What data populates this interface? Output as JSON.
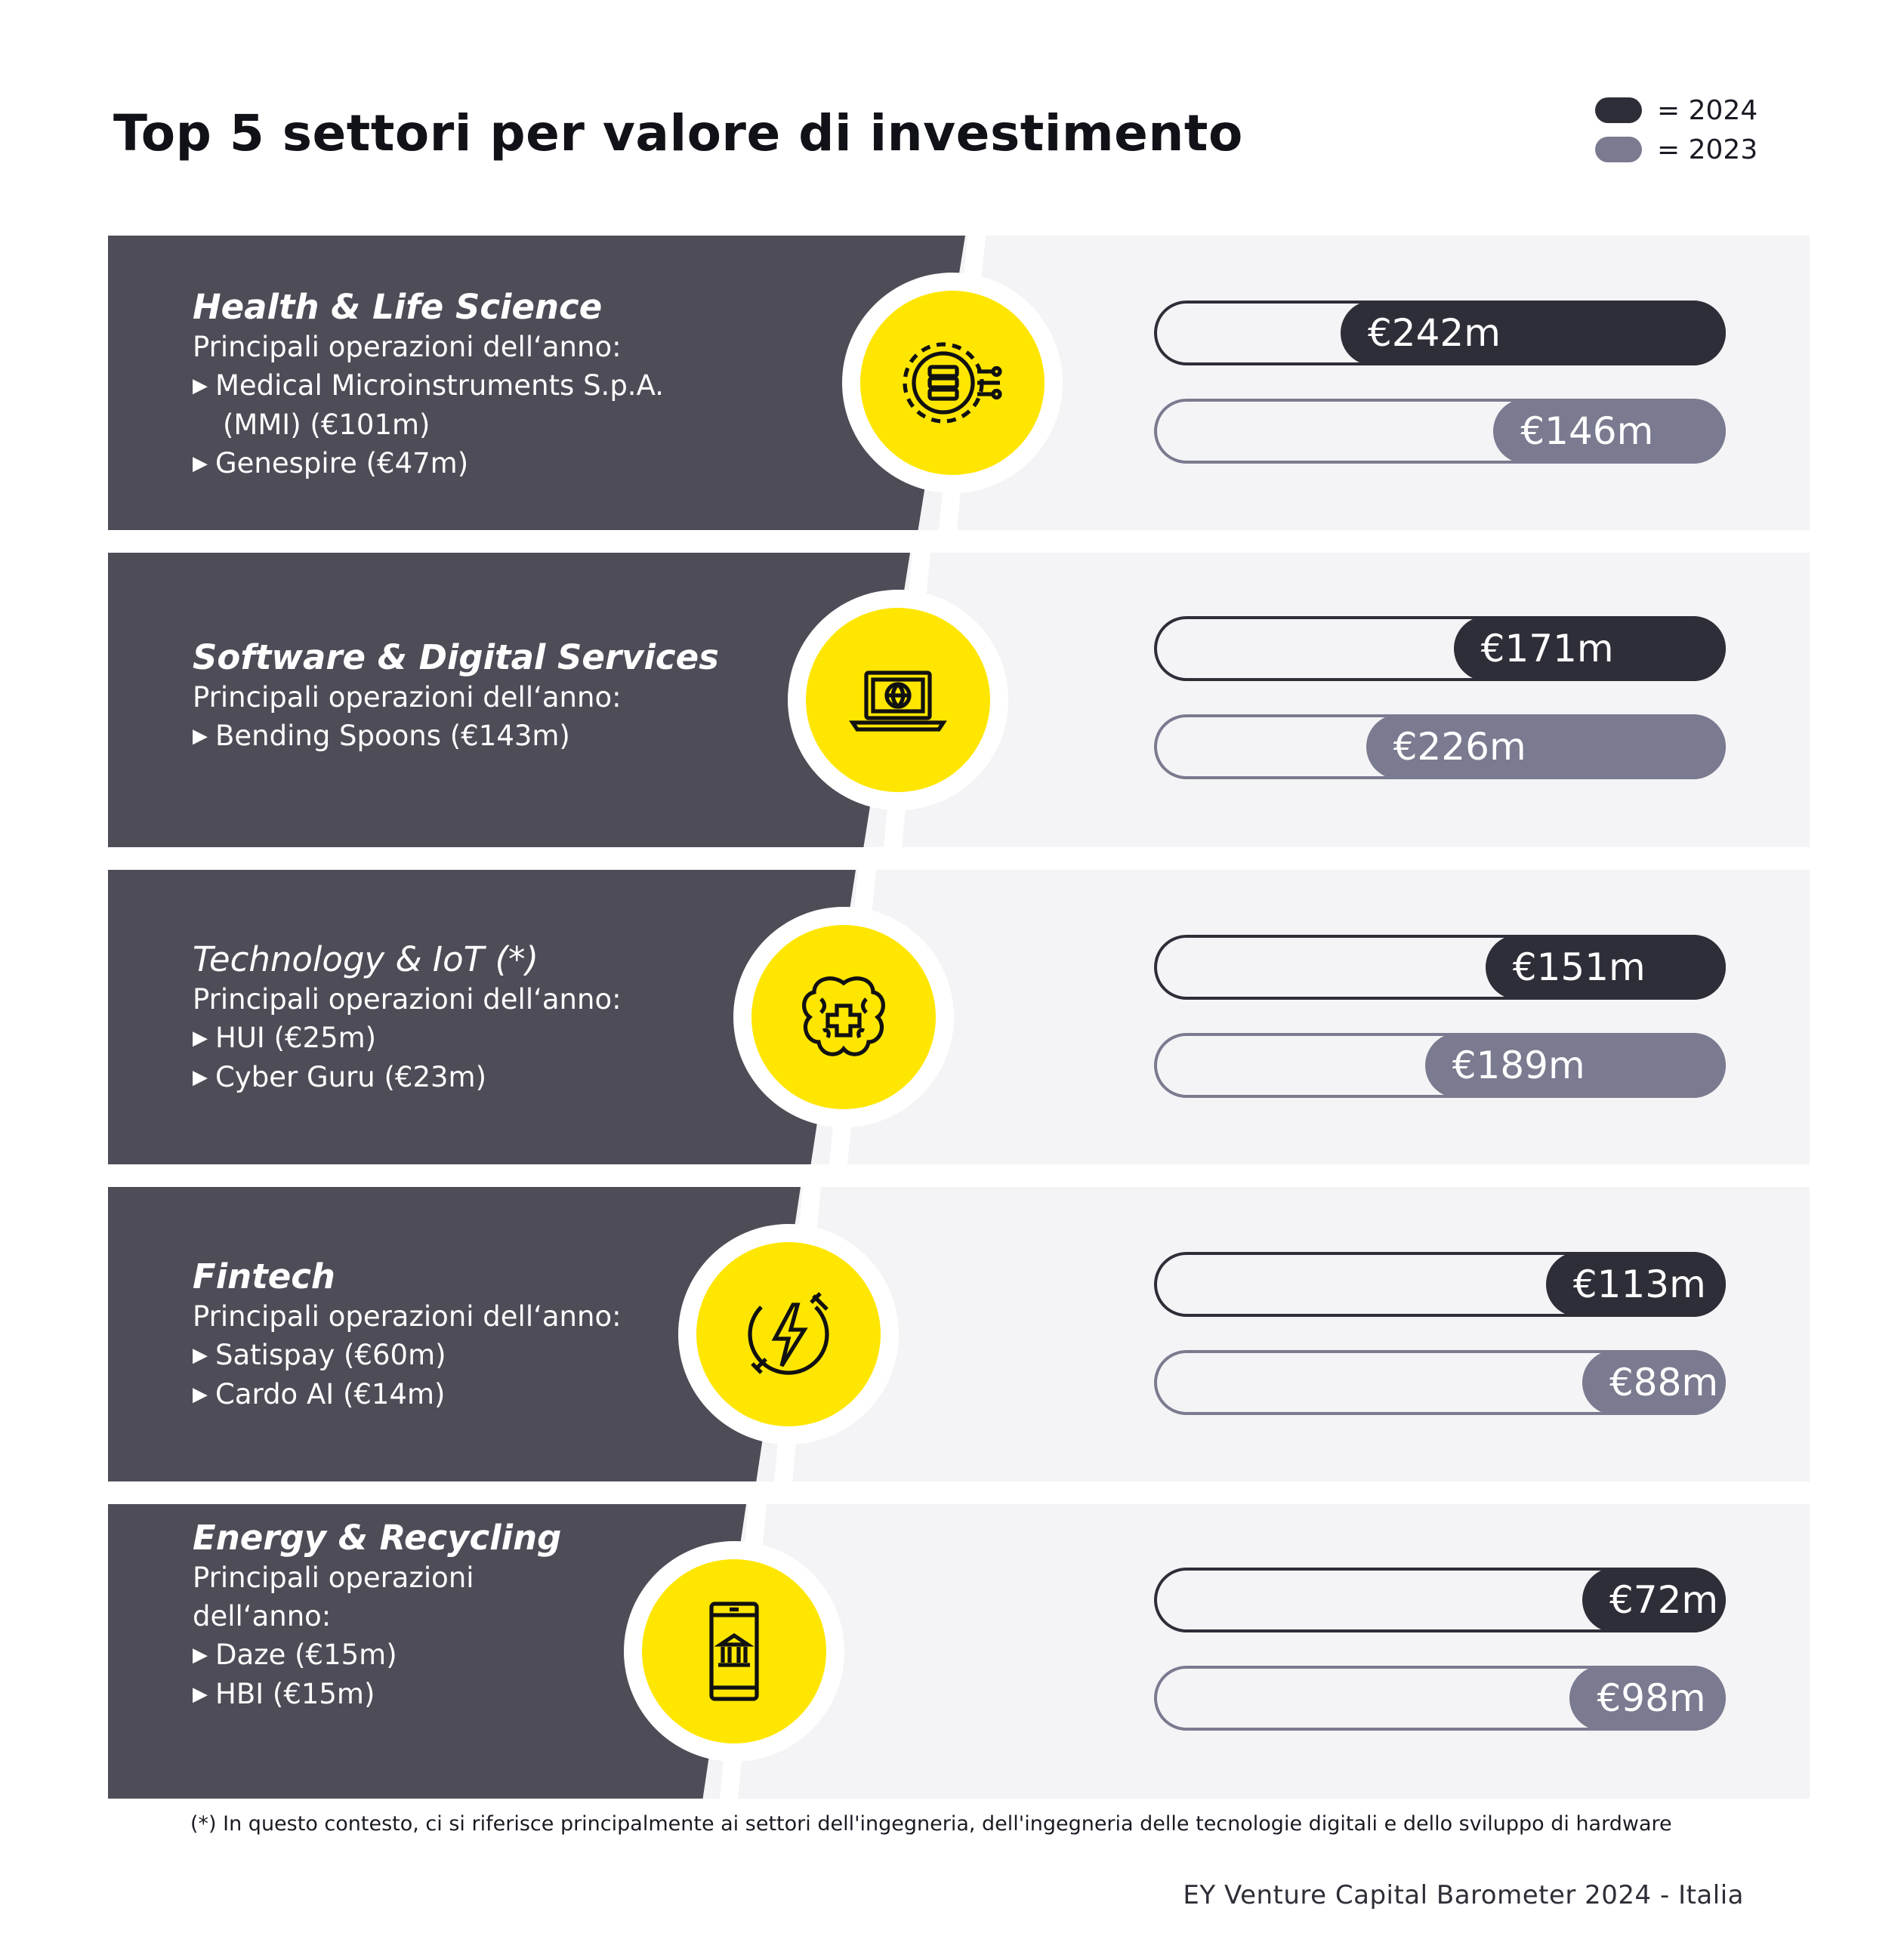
{
  "title": "Top 5 settori per valore di investimento",
  "legend": [
    {
      "label": "= 2024",
      "color": "#2e2e38"
    },
    {
      "label": "= 2023",
      "color": "#7a7a90"
    }
  ],
  "colors": {
    "panel_dark": "#4d4c57",
    "accent_yellow": "#ffe600",
    "background_light": "#f4f4f6"
  },
  "chart_data": {
    "type": "bar",
    "categories": [
      "Health & Life Science",
      "Software & Digital Services",
      "Technology & IoT (*)",
      "Fintech",
      "Energy & Recycling"
    ],
    "series": [
      {
        "name": "2024",
        "values": [
          242,
          171,
          151,
          113,
          72
        ],
        "labels": [
          "€242m",
          "€171m",
          "€151m",
          "€113m",
          "€72m"
        ]
      },
      {
        "name": "2023",
        "values": [
          146,
          226,
          189,
          88,
          98
        ],
        "labels": [
          "€146m",
          "€226m",
          "€189m",
          "€88m",
          "€98m"
        ]
      }
    ],
    "xlim": [
      0,
      242
    ]
  },
  "sectors": [
    {
      "name": "Health & Life Science",
      "subtitle": "Principali operazioni dell‘anno:",
      "deals": [
        "Medical Microinstruments S.p.A.",
        "Genespire (€47m)"
      ],
      "deal_cont": "(MMI) (€101m)",
      "icon": "gear-circuit-icon"
    },
    {
      "name": "Software & Digital Services",
      "subtitle": "Principali operazioni dell‘anno:",
      "deals": [
        "Bending Spoons (€143m)"
      ],
      "icon": "laptop-globe-icon"
    },
    {
      "name": "Technology & IoT (*)",
      "subtitle": "Principali operazioni dell‘anno:",
      "deals": [
        "HUI (€25m)",
        "Cyber Guru (€23m)"
      ],
      "icon": "brain-cross-icon"
    },
    {
      "name": "Fintech",
      "subtitle": "Principali operazioni dell‘anno:",
      "deals": [
        "Satispay (€60m)",
        "Cardo AI (€14m)"
      ],
      "icon": "lightning-plug-icon"
    },
    {
      "name": "Energy & Recycling",
      "subtitle_lines": [
        "Principali operazioni",
        "dell‘anno:"
      ],
      "deals": [
        "Daze (€15m)",
        "HBI (€15m)"
      ],
      "icon": "phone-bank-icon"
    }
  ],
  "footnote": "(*) In questo contesto, ci si riferisce principalmente ai settori dell'ingegneria, dell'ingegneria delle tecnologie digitali e dello sviluppo di hardware",
  "source": "EY Venture Capital Barometer 2024 - Italia"
}
